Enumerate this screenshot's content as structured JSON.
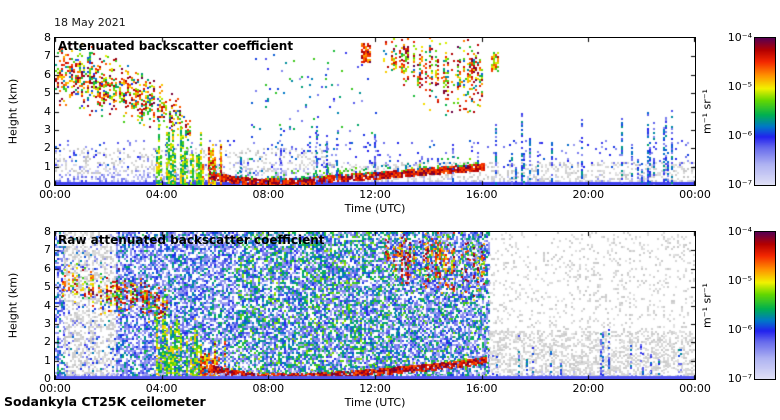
{
  "page": {
    "date_label": "18 May 2021",
    "footer": "Sodankyla CT25K ceilometer",
    "background": "#ffffff"
  },
  "colormap": {
    "scale": "log",
    "stops": [
      [
        0.0,
        "#e2e2f6"
      ],
      [
        0.14,
        "#b0b4f2"
      ],
      [
        0.26,
        "#6468ec"
      ],
      [
        0.33,
        "#2222ee"
      ],
      [
        0.4,
        "#0078c8"
      ],
      [
        0.48,
        "#00b050"
      ],
      [
        0.58,
        "#66d800"
      ],
      [
        0.66,
        "#f2f200"
      ],
      [
        0.75,
        "#ff9000"
      ],
      [
        0.84,
        "#f42800"
      ],
      [
        0.92,
        "#b40000"
      ],
      [
        1.0,
        "#5a0050"
      ]
    ],
    "below_range_grays": [
      "#bebebe",
      "#e8e8e8"
    ]
  },
  "chart_data": [
    {
      "type": "heatmap",
      "title": "Attenuated backscatter coefficient",
      "xlabel": "Time (UTC)",
      "ylabel": "Height (km)",
      "x_ticks": [
        "00:00",
        "04:00",
        "08:00",
        "12:00",
        "16:00",
        "20:00",
        "00:00"
      ],
      "x_tick_hours": [
        0,
        4,
        8,
        12,
        16,
        20,
        24
      ],
      "xlim_hours": [
        0,
        24
      ],
      "y_ticks": [
        0,
        1,
        2,
        3,
        4,
        5,
        6,
        7,
        8
      ],
      "ylim_km": [
        0,
        8
      ],
      "grid": false,
      "colorbar": {
        "unit": "m⁻¹ sr⁻¹",
        "scale": "log",
        "top_value": "10⁻⁴",
        "bottom_value": "10⁻⁷",
        "ticks": [
          "10⁻⁴",
          "10⁻⁵",
          "10⁻⁶",
          "10⁻⁷"
        ]
      },
      "render_seed": 11,
      "features": [
        {
          "type": "haze",
          "t0": 0,
          "t1": 10.2,
          "h_top": 1.45,
          "density": 0.62,
          "v": [
            0.04,
            0.34
          ]
        },
        {
          "type": "haze",
          "t0": 10.2,
          "t1": 24,
          "h_top": 0.8,
          "density": 0.38,
          "v": [
            0.03,
            0.26
          ]
        },
        {
          "type": "noise",
          "t0": 0,
          "t1": 10.2,
          "h0": 0.6,
          "h1": 2.0,
          "density": 0.18,
          "v": [
            -0.9,
            -0.1
          ]
        },
        {
          "type": "noise",
          "t0": 10.2,
          "t1": 24,
          "h0": 0,
          "h1": 1.25,
          "density": 0.3,
          "v": [
            -0.9,
            -0.1
          ]
        },
        {
          "type": "noise",
          "t0": 0,
          "t1": 24,
          "h0": 1.0,
          "h1": 2.4,
          "density": 0.05,
          "v": [
            0.18,
            0.4
          ],
          "gamma": 1.4
        },
        {
          "type": "strip",
          "t0": 0,
          "t1": 24,
          "h0": 0,
          "h1": 0.14,
          "v": 0.3
        },
        {
          "type": "band",
          "density": 0.6,
          "v": [
            0.3,
            1.0
          ],
          "gap": 0.12,
          "path": [
            [
              0.0,
              6.2,
              1.8
            ],
            [
              1.2,
              5.9,
              2.0
            ],
            [
              2.6,
              5.0,
              1.8
            ],
            [
              3.8,
              4.4,
              1.4
            ],
            [
              4.6,
              3.6,
              1.2
            ],
            [
              5.1,
              3.0,
              0.8
            ]
          ]
        },
        {
          "type": "columns",
          "t0": 3.8,
          "t1": 5.45,
          "h_base": 0,
          "h_top": [
            1.6,
            3.7
          ],
          "col_prob": 0.8,
          "density": 0.72,
          "v": [
            0.42,
            0.72
          ]
        },
        {
          "type": "columns",
          "t0": 5.45,
          "t1": 6.4,
          "h_base": 0,
          "h_top": [
            0.9,
            2.3
          ],
          "col_prob": 0.85,
          "density": 0.8,
          "v": [
            0.6,
            0.95
          ]
        },
        {
          "type": "line",
          "th": 0.16,
          "v": [
            0.78,
            1.0
          ],
          "fringe": [
            0.55,
            0.3,
            0.34,
            0.62
          ],
          "path": [
            [
              5.8,
              0.55
            ],
            [
              6.6,
              0.32
            ],
            [
              7.6,
              0.16
            ],
            [
              9.2,
              0.2
            ],
            [
              10.6,
              0.4
            ],
            [
              12.0,
              0.52
            ],
            [
              13.6,
              0.72
            ],
            [
              15.2,
              0.9
            ],
            [
              16.1,
              1.0
            ]
          ]
        },
        {
          "type": "noise",
          "t0": 7.3,
          "t1": 12.2,
          "h0": 1.4,
          "h1": 7.3,
          "density": 0.03,
          "v": [
            0.2,
            0.55
          ]
        },
        {
          "type": "columns",
          "t0": 11.5,
          "t1": 11.78,
          "h_base": 6.7,
          "h_top": [
            7.6,
            7.7
          ],
          "col_prob": 0.9,
          "density": 0.8,
          "v": [
            0.7,
            1.0
          ]
        },
        {
          "type": "band",
          "density": 0.55,
          "v": [
            0.35,
            1.0
          ],
          "gap": 0.38,
          "path": [
            [
              12.3,
              7.1,
              1.1
            ],
            [
              13.0,
              6.9,
              1.7
            ],
            [
              13.9,
              6.5,
              2.3
            ],
            [
              15.1,
              5.9,
              2.6
            ],
            [
              16.05,
              6.1,
              2.0
            ]
          ]
        },
        {
          "type": "columns",
          "t0": 16.35,
          "t1": 16.6,
          "h_base": 6.2,
          "h_top": [
            7.2,
            7.3
          ],
          "col_prob": 0.9,
          "density": 0.7,
          "v": [
            0.5,
            0.95
          ]
        },
        {
          "type": "columns",
          "t0": 6.6,
          "t1": 16.2,
          "h_base": 0,
          "h_top": [
            1.4,
            3.4
          ],
          "col_prob": 0.1,
          "density": 0.45,
          "v": [
            0.2,
            0.46
          ]
        },
        {
          "type": "columns",
          "t0": 16.5,
          "t1": 23.9,
          "h_base": 0,
          "h_top": [
            1.1,
            4.6
          ],
          "col_prob": 0.22,
          "density": 0.5,
          "v": [
            0.2,
            0.46
          ]
        }
      ]
    },
    {
      "type": "heatmap",
      "title": "Raw attenuated backscatter coefficient",
      "xlabel": "Time (UTC)",
      "ylabel": "Height (km)",
      "x_ticks": [
        "00:00",
        "04:00",
        "08:00",
        "12:00",
        "16:00",
        "20:00",
        "00:00"
      ],
      "x_tick_hours": [
        0,
        4,
        8,
        12,
        16,
        20,
        24
      ],
      "xlim_hours": [
        0,
        24
      ],
      "y_ticks": [
        0,
        1,
        2,
        3,
        4,
        5,
        6,
        7,
        8
      ],
      "ylim_km": [
        0,
        8
      ],
      "grid": false,
      "colorbar": {
        "unit": "m⁻¹ sr⁻¹",
        "scale": "log",
        "top_value": "10⁻⁴",
        "bottom_value": "10⁻⁷",
        "ticks": [
          "10⁻⁴",
          "10⁻⁵",
          "10⁻⁶",
          "10⁻⁷"
        ]
      },
      "render_seed": 23,
      "features": [
        {
          "type": "noise",
          "t0": 0,
          "t1": 0.35,
          "h0": 0,
          "h1": 8,
          "density": 0.5,
          "v": [
            0.18,
            0.5
          ],
          "gamma": 1.5
        },
        {
          "type": "noise",
          "t0": 0.35,
          "t1": 2.3,
          "h0": 0,
          "h1": 8,
          "density": 0.42,
          "v": [
            -0.9,
            -0.1
          ]
        },
        {
          "type": "noise",
          "t0": 0.35,
          "t1": 2.3,
          "h0": 0,
          "h1": 8,
          "density": 0.1,
          "v": [
            0.18,
            0.45
          ],
          "gamma": 1.6
        },
        {
          "type": "noise",
          "t0": 2.3,
          "t1": 16.25,
          "h0": 0,
          "h1": 8,
          "density": 0.62,
          "v": [
            0.16,
            0.5
          ],
          "gamma": 1.8
        },
        {
          "type": "noise",
          "t0": 6.8,
          "t1": 12.6,
          "h0": 0.3,
          "h1": 8,
          "density": 0.2,
          "v": [
            0.4,
            0.62
          ],
          "gamma": 1.2
        },
        {
          "type": "noise",
          "t0": 12.6,
          "t1": 16.25,
          "h0": 0,
          "h1": 8,
          "density": 0.1,
          "v": [
            0.4,
            0.6
          ],
          "gamma": 1.3
        },
        {
          "type": "noise",
          "t0": 16.3,
          "t1": 24,
          "h0": 0,
          "h1": 8,
          "density": 0.13,
          "v": [
            -0.9,
            -0.2
          ]
        },
        {
          "type": "noise",
          "t0": 16.3,
          "t1": 24,
          "h0": 0,
          "h1": 2.6,
          "density": 0.4,
          "v": [
            -0.9,
            -0.2
          ]
        },
        {
          "type": "band",
          "density": 0.6,
          "v": [
            0.45,
            1.0
          ],
          "gap": 0.15,
          "path": [
            [
              0.3,
              5.3,
              1.1
            ],
            [
              1.4,
              5.0,
              1.4
            ],
            [
              2.8,
              4.5,
              1.3
            ],
            [
              4.2,
              4.0,
              1.0
            ]
          ]
        },
        {
          "type": "columns",
          "t0": 3.8,
          "t1": 5.45,
          "h_base": 0,
          "h_top": [
            1.6,
            3.7
          ],
          "col_prob": 0.8,
          "density": 0.72,
          "v": [
            0.42,
            0.72
          ]
        },
        {
          "type": "columns",
          "t0": 5.45,
          "t1": 6.4,
          "h_base": 0,
          "h_top": [
            0.9,
            2.3
          ],
          "col_prob": 0.85,
          "density": 0.8,
          "v": [
            0.6,
            0.95
          ]
        },
        {
          "type": "line",
          "th": 0.15,
          "v": [
            0.78,
            1.0
          ],
          "fringe": [
            0.4,
            0.25,
            0.4,
            0.65
          ],
          "path": [
            [
              5.8,
              0.6
            ],
            [
              6.7,
              0.32
            ],
            [
              7.7,
              0.12
            ],
            [
              9.6,
              0.16
            ],
            [
              11.2,
              0.3
            ],
            [
              12.8,
              0.5
            ],
            [
              14.2,
              0.68
            ],
            [
              15.6,
              0.92
            ],
            [
              16.15,
              1.05
            ]
          ]
        },
        {
          "type": "band",
          "density": 0.5,
          "v": [
            0.5,
            1.0
          ],
          "gap": 0.42,
          "path": [
            [
              12.3,
              7.2,
              1.0
            ],
            [
              13.1,
              6.9,
              1.5
            ],
            [
              14.1,
              6.6,
              1.9
            ],
            [
              15.3,
              6.2,
              2.3
            ],
            [
              16.05,
              6.3,
              1.7
            ]
          ]
        },
        {
          "type": "columns",
          "t0": 12.9,
          "t1": 14.6,
          "h_base": 5.2,
          "h_top": [
            7.4,
            7.7
          ],
          "col_prob": 0.18,
          "density": 0.5,
          "v": [
            0.75,
            1.0
          ]
        },
        {
          "type": "columns",
          "t0": 16.4,
          "t1": 23.9,
          "h_base": 0.2,
          "h_top": [
            0.9,
            3.2
          ],
          "col_prob": 0.2,
          "density": 0.45,
          "v": [
            0.2,
            0.45
          ]
        },
        {
          "type": "haze",
          "t0": 0,
          "t1": 24,
          "h_top": 0.5,
          "density": 0.5,
          "v": [
            0.06,
            0.3
          ]
        },
        {
          "type": "strip",
          "t0": 0,
          "t1": 24,
          "h0": 0,
          "h1": 0.14,
          "v": 0.28
        }
      ]
    }
  ]
}
